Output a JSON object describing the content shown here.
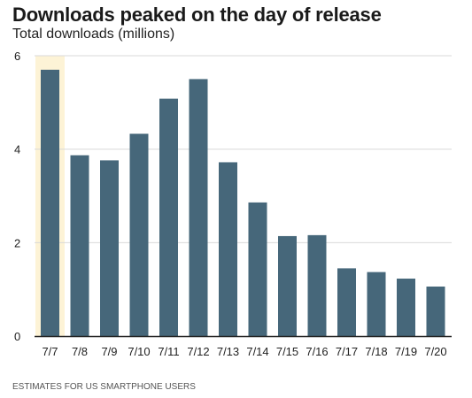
{
  "title": "Downloads peaked on the day of release",
  "subtitle": "Total downloads (millions)",
  "footer": "ESTIMATES FOR US SMARTPHONE USERS",
  "colors": {
    "bar": "#46677a",
    "highlight": "#fdf3d6",
    "grid": "#d9d9d9",
    "axis": "#222222"
  },
  "chart_data": {
    "type": "bar",
    "title": "Downloads peaked on the day of release",
    "subtitle": "Total downloads (millions)",
    "xlabel": "",
    "ylabel": "",
    "categories": [
      "7/7",
      "7/8",
      "7/9",
      "7/10",
      "7/11",
      "7/12",
      "7/13",
      "7/14",
      "7/15",
      "7/16",
      "7/17",
      "7/18",
      "7/19",
      "7/20"
    ],
    "values": [
      5.7,
      3.87,
      3.76,
      4.33,
      5.08,
      5.5,
      3.72,
      2.86,
      2.14,
      2.16,
      1.45,
      1.37,
      1.23,
      1.06
    ],
    "highlighted_category": "7/7",
    "ylim": [
      0,
      6
    ],
    "yticks": [
      0,
      2,
      4,
      6
    ],
    "grid": true,
    "legend": "none"
  }
}
